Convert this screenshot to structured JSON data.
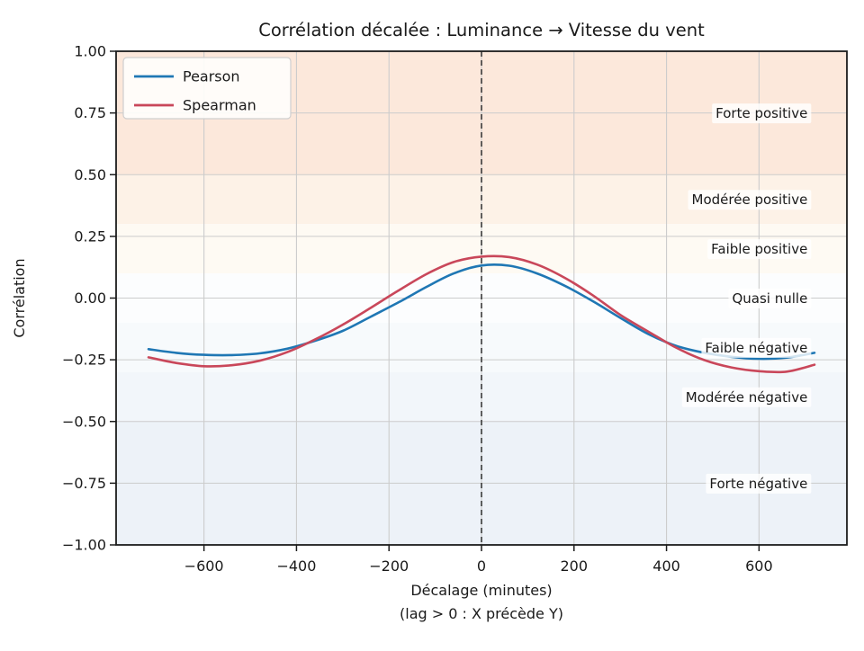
{
  "chart_data": {
    "type": "line",
    "title": "Corrélation décalée : Luminance → Vitesse du vent",
    "xlabel": "Décalage (minutes)",
    "xlabel_line2": "(lag > 0 : X précède Y)",
    "ylabel": "Corrélation",
    "xlim": [
      -790,
      790
    ],
    "ylim": [
      -1.0,
      1.0
    ],
    "grid": true,
    "grid_color": "#cccccc",
    "frame_color": "#1c1c1c",
    "vline_x": 0,
    "vline_color": "#3a3a3a",
    "legend_position": "upper left",
    "xticks": [
      -600,
      -400,
      -200,
      0,
      200,
      400,
      600
    ],
    "xtick_labels": [
      "−600",
      "−400",
      "−200",
      "0",
      "200",
      "400",
      "600"
    ],
    "yticks": [
      1.0,
      0.75,
      0.5,
      0.25,
      0.0,
      -0.25,
      -0.5,
      -0.75,
      -1.0
    ],
    "ytick_labels": [
      "1.00",
      "0.75",
      "0.50",
      "0.25",
      "0.00",
      "−0.25",
      "−0.50",
      "−0.75",
      "−1.00"
    ],
    "x": [
      -720,
      -660,
      -600,
      -540,
      -480,
      -420,
      -360,
      -300,
      -240,
      -180,
      -120,
      -60,
      0,
      60,
      120,
      180,
      240,
      300,
      360,
      420,
      480,
      540,
      600,
      660,
      720
    ],
    "series": [
      {
        "name": "Pearson",
        "color": "#1f77b4",
        "values": [
          -0.207,
          -0.222,
          -0.23,
          -0.231,
          -0.224,
          -0.205,
          -0.173,
          -0.133,
          -0.076,
          -0.018,
          0.044,
          0.1,
          0.132,
          0.131,
          0.1,
          0.05,
          -0.012,
          -0.08,
          -0.145,
          -0.193,
          -0.221,
          -0.238,
          -0.246,
          -0.241,
          -0.222
        ]
      },
      {
        "name": "Spearman",
        "color": "#c9475a",
        "values": [
          -0.24,
          -0.263,
          -0.276,
          -0.272,
          -0.254,
          -0.219,
          -0.168,
          -0.108,
          -0.04,
          0.03,
          0.096,
          0.146,
          0.168,
          0.166,
          0.136,
          0.082,
          0.012,
          -0.068,
          -0.135,
          -0.2,
          -0.25,
          -0.281,
          -0.296,
          -0.298,
          -0.27
        ]
      }
    ],
    "bands": [
      {
        "label": "Forte positive",
        "from": 0.5,
        "to": 1.0,
        "color": "#fce8db",
        "label_y": 0.75
      },
      {
        "label": "Modérée positive",
        "from": 0.3,
        "to": 0.5,
        "color": "#fdf2e7",
        "label_y": 0.4
      },
      {
        "label": "Faible positive",
        "from": 0.1,
        "to": 0.3,
        "color": "#fefaf3",
        "label_y": 0.2
      },
      {
        "label": "Quasi nulle",
        "from": -0.1,
        "to": 0.1,
        "color": "#fcfdfe",
        "label_y": 0.0
      },
      {
        "label": "Faible négative",
        "from": -0.3,
        "to": -0.1,
        "color": "#f7fafc",
        "label_y": -0.2
      },
      {
        "label": "Modérée négative",
        "from": -0.5,
        "to": -0.3,
        "color": "#f2f6fa",
        "label_y": -0.4
      },
      {
        "label": "Forte négative",
        "from": -1.0,
        "to": -0.5,
        "color": "#edf2f8",
        "label_y": -0.75
      }
    ],
    "band_label_color": "#4d4d4d",
    "band_label_lag": 705
  }
}
